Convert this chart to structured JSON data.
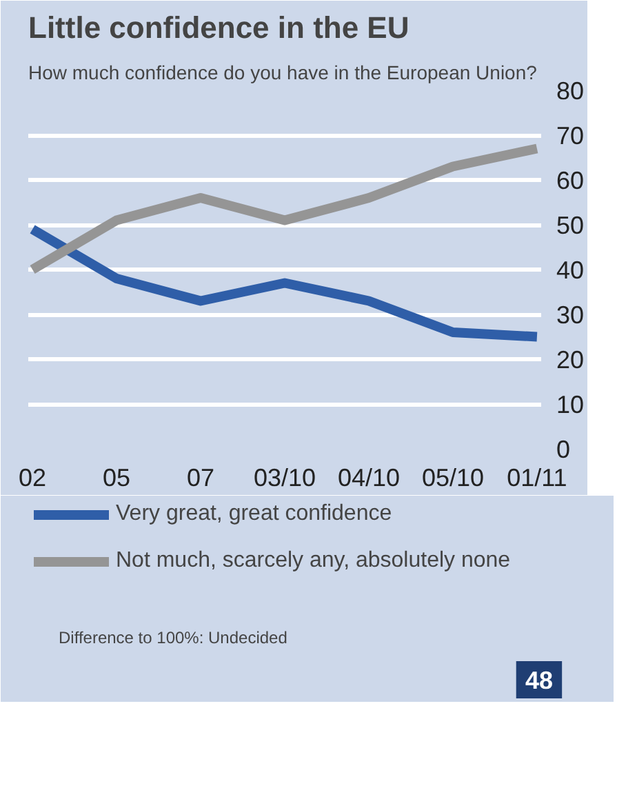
{
  "chart_data": {
    "type": "line",
    "title": "Little confidence in the EU",
    "subtitle": "How much confidence do you have in the European Union?",
    "categories": [
      "02",
      "05",
      "07",
      "03/10",
      "04/10",
      "05/10",
      "01/11"
    ],
    "series": [
      {
        "name": "Very great, great confidence",
        "color": "#2f5ea8",
        "values": [
          49,
          38,
          33,
          37,
          33,
          26,
          25
        ]
      },
      {
        "name": "Not much, scarcely any, absolutely none",
        "color": "#959595",
        "values": [
          40,
          51,
          56,
          51,
          56,
          63,
          67
        ]
      }
    ],
    "ylim": [
      0,
      80
    ],
    "yticks": [
      0,
      10,
      20,
      30,
      40,
      50,
      60,
      70,
      80
    ],
    "grid": "y",
    "legend": "bottom",
    "line_style": "solid",
    "annotations": [
      "Difference to 100%: Undecided",
      "48"
    ]
  }
}
